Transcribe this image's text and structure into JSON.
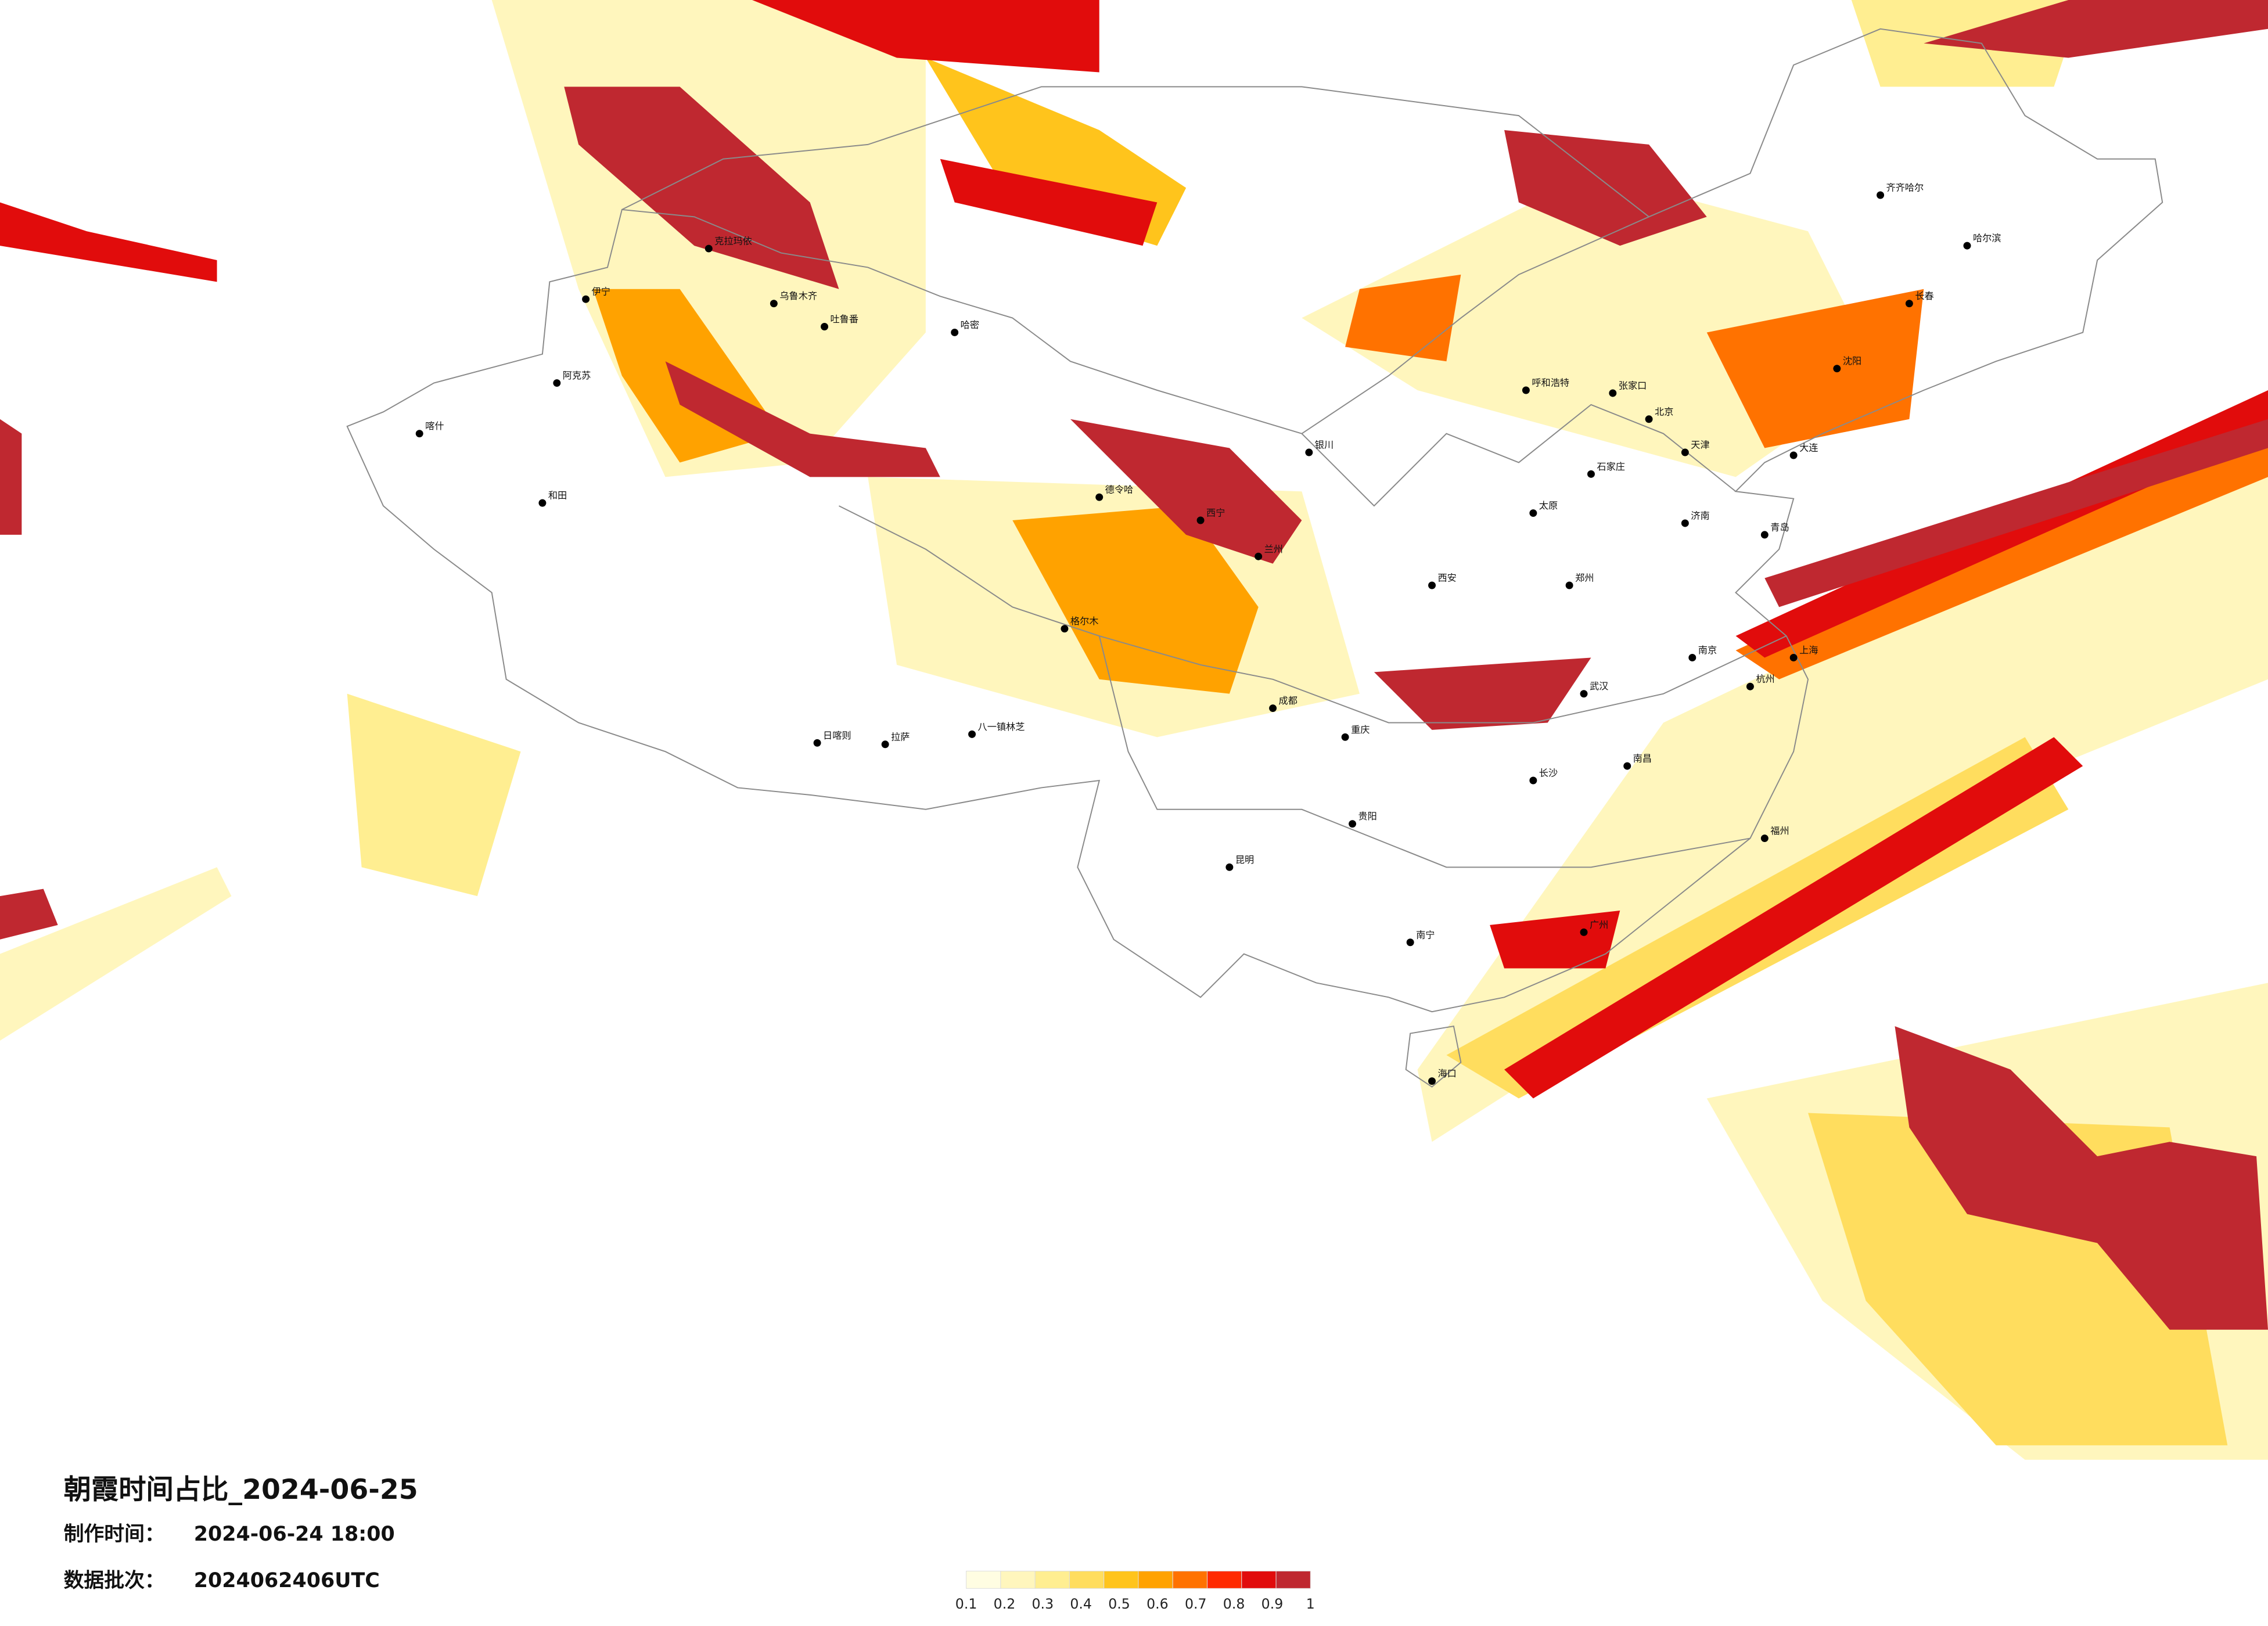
{
  "map": {
    "title": "朝霞时间占比_2024-06-25",
    "made_label": "制作时间：",
    "made_time": "2024-06-24 18:00",
    "batch_label": "数据批次：",
    "batch": "2024062406UTC",
    "legend": {
      "colors": [
        "#fffde2",
        "#fff6bd",
        "#ffee91",
        "#ffdd5e",
        "#ffc41c",
        "#ffa200",
        "#ff7200",
        "#ff2a00",
        "#e10c0c",
        "#bf2830"
      ],
      "ticks": [
        "0.1",
        "0.2",
        "0.3",
        "0.4",
        "0.5",
        "0.6",
        "0.7",
        "0.8",
        "0.9",
        "1"
      ]
    },
    "cities": [
      "伊宁",
      "克拉玛依",
      "乌鲁木齐",
      "吐鲁番",
      "哈密",
      "阿克苏",
      "喀什",
      "和田",
      "格尔木",
      "德令哈",
      "拉萨",
      "日喀则",
      "八一镇林芝",
      "西宁",
      "兰州",
      "银川",
      "呼和浩特",
      "张家口",
      "北京",
      "天津",
      "石家庄",
      "太原",
      "济南",
      "郑州",
      "西安",
      "武汉",
      "南京",
      "上海",
      "杭州",
      "长沙",
      "南昌",
      "福州",
      "广州",
      "南宁",
      "贵阳",
      "昆明",
      "成都",
      "重庆",
      "哈尔滨",
      "长春",
      "沈阳",
      "大连",
      "青岛",
      "齐齐哈尔",
      "海口"
    ]
  }
}
